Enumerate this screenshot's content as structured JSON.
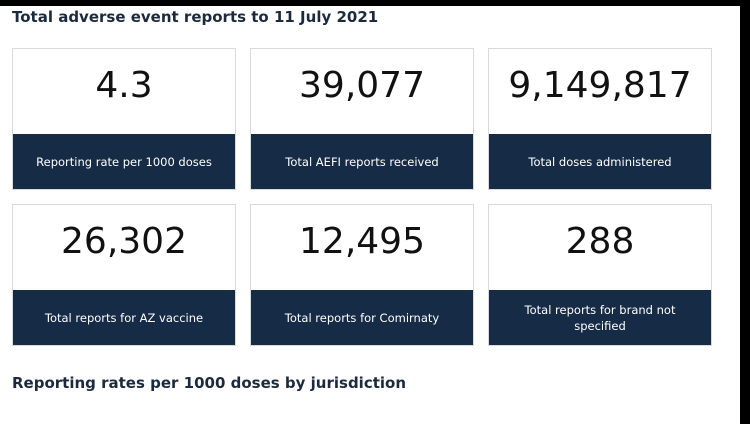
{
  "header": {
    "title": "Total adverse event reports to 11 July 2021"
  },
  "cards": [
    {
      "value": "4.3",
      "label": "Reporting rate per 1000 doses"
    },
    {
      "value": "39,077",
      "label": "Total AEFI reports received"
    },
    {
      "value": "9,149,817",
      "label": "Total doses administered"
    },
    {
      "value": "26,302",
      "label": "Total reports for AZ vaccine"
    },
    {
      "value": "12,495",
      "label": "Total reports for Comirnaty"
    },
    {
      "value": "288",
      "label": "Total reports for brand not specified"
    }
  ],
  "section": {
    "title": "Reporting rates per 1000 doses by jurisdiction"
  },
  "colors": {
    "label_background": "#162b45",
    "heading_text": "#1b2a3d"
  }
}
